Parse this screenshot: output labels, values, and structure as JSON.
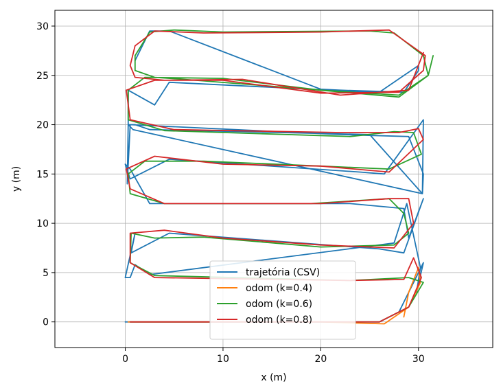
{
  "chart_data": {
    "type": "line",
    "xlabel": "x (m)",
    "ylabel": "y (m)",
    "xlim": [
      -7.2,
      37.6
    ],
    "ylim": [
      -2.6,
      31.6
    ],
    "x_ticks": [
      0,
      10,
      20,
      30
    ],
    "y_ticks": [
      0,
      5,
      10,
      15,
      20,
      25,
      30
    ],
    "grid": true,
    "legend_position": "lower-center",
    "series": [
      {
        "name": "trajetória (CSV)",
        "color": "#1f77b4",
        "x": [
          0,
          26,
          28,
          30.5,
          29.8,
          30.2,
          28.8,
          27.5,
          2.5,
          1,
          0.5,
          0,
          1,
          0.6,
          4.5,
          26,
          28.5,
          30.5,
          29,
          28.5,
          23,
          2.5,
          0.5,
          0,
          0.5,
          4.5,
          24,
          26.5,
          30.5,
          30.4,
          0.8,
          0.3,
          0.2,
          0.5,
          22,
          29,
          30.5,
          30.4,
          25,
          2.5,
          1,
          0.3,
          0.3,
          3,
          4.5,
          23,
          26,
          30,
          30,
          28.5,
          22,
          20,
          4.5,
          2.5,
          1
        ],
        "y": [
          0,
          0,
          1,
          6,
          3,
          5.5,
          12,
          8,
          4.8,
          5.8,
          4.5,
          4.5,
          9,
          7,
          9,
          7.4,
          7,
          12.5,
          8.5,
          11.5,
          12,
          12,
          15.5,
          16,
          14.5,
          16.5,
          15.2,
          15,
          20.5,
          13,
          19.5,
          20,
          14,
          20,
          19,
          18.8,
          15,
          13,
          19,
          19.5,
          20,
          20,
          23.5,
          22,
          24.3,
          23.4,
          23.3,
          26,
          25.5,
          23.3,
          23.5,
          23.6,
          29.5,
          29.5,
          26.5
        ]
      },
      {
        "name": "odom (k=0.4)",
        "color": "#ff7f0e",
        "x": [
          0.3,
          10,
          20,
          26.5,
          29,
          30.2,
          30,
          29,
          28.5
        ],
        "y": [
          0,
          0,
          0,
          -0.2,
          1.5,
          4,
          5.5,
          3,
          0.5
        ]
      },
      {
        "name": "odom (k=0.6)",
        "color": "#2ca02c",
        "x": [
          0.5,
          26,
          29,
          30.5,
          29,
          23,
          3,
          0.5,
          0.6,
          3,
          8,
          20,
          27.5,
          29,
          28.5,
          27,
          19,
          4,
          0.5,
          0.3,
          2,
          8,
          20,
          27,
          30.3,
          29.5,
          27.5,
          23,
          4,
          0.3,
          0.3,
          2,
          10,
          20,
          28,
          31,
          30.5,
          27.5,
          25,
          10,
          5,
          2.5,
          1,
          1,
          3,
          6,
          20,
          28,
          31,
          31.5
        ],
        "y": [
          0,
          0,
          1.5,
          4,
          4.5,
          4.2,
          4.7,
          6,
          9,
          8.5,
          8.6,
          7.6,
          7.8,
          9,
          11,
          12.5,
          12,
          12,
          13,
          15,
          16.3,
          16.3,
          15.8,
          15.5,
          17,
          19.2,
          19.3,
          18.8,
          19.4,
          20.5,
          23.5,
          24.8,
          24.7,
          23.5,
          22.8,
          25,
          27,
          29.3,
          29.5,
          29.4,
          29.6,
          29.4,
          27,
          25.5,
          24.8,
          24.6,
          23.5,
          23,
          25,
          27
        ]
      },
      {
        "name": "odom (k=0.8)",
        "color": "#d62728",
        "x": [
          0.5,
          26,
          29,
          30.3,
          29.5,
          28.5,
          23,
          3,
          0.5,
          0.5,
          4,
          10,
          20,
          27.5,
          29.5,
          29,
          27,
          20,
          4,
          0.5,
          0.1,
          3,
          10,
          20,
          27,
          30.5,
          30,
          28,
          22,
          5,
          0.5,
          0.1,
          3,
          10,
          20,
          28,
          30.5,
          30.7,
          27,
          20,
          8,
          3,
          1,
          0.5,
          1,
          4,
          12,
          22,
          29,
          30.5
        ],
        "y": [
          0,
          0,
          1.5,
          4.5,
          6.5,
          4.3,
          4.2,
          4.5,
          6,
          9,
          9.3,
          8.5,
          7.8,
          7.5,
          10,
          12.5,
          12.5,
          12,
          12,
          13.5,
          15.5,
          16.8,
          16,
          15.8,
          15.2,
          18.5,
          19.6,
          19.2,
          19.2,
          19.5,
          20.5,
          23.5,
          24.5,
          24.5,
          23.2,
          23.3,
          25.5,
          27,
          29.6,
          29.4,
          29.3,
          29.5,
          28,
          26,
          24.8,
          24.5,
          24.6,
          23,
          23.5,
          27.3
        ]
      }
    ]
  }
}
